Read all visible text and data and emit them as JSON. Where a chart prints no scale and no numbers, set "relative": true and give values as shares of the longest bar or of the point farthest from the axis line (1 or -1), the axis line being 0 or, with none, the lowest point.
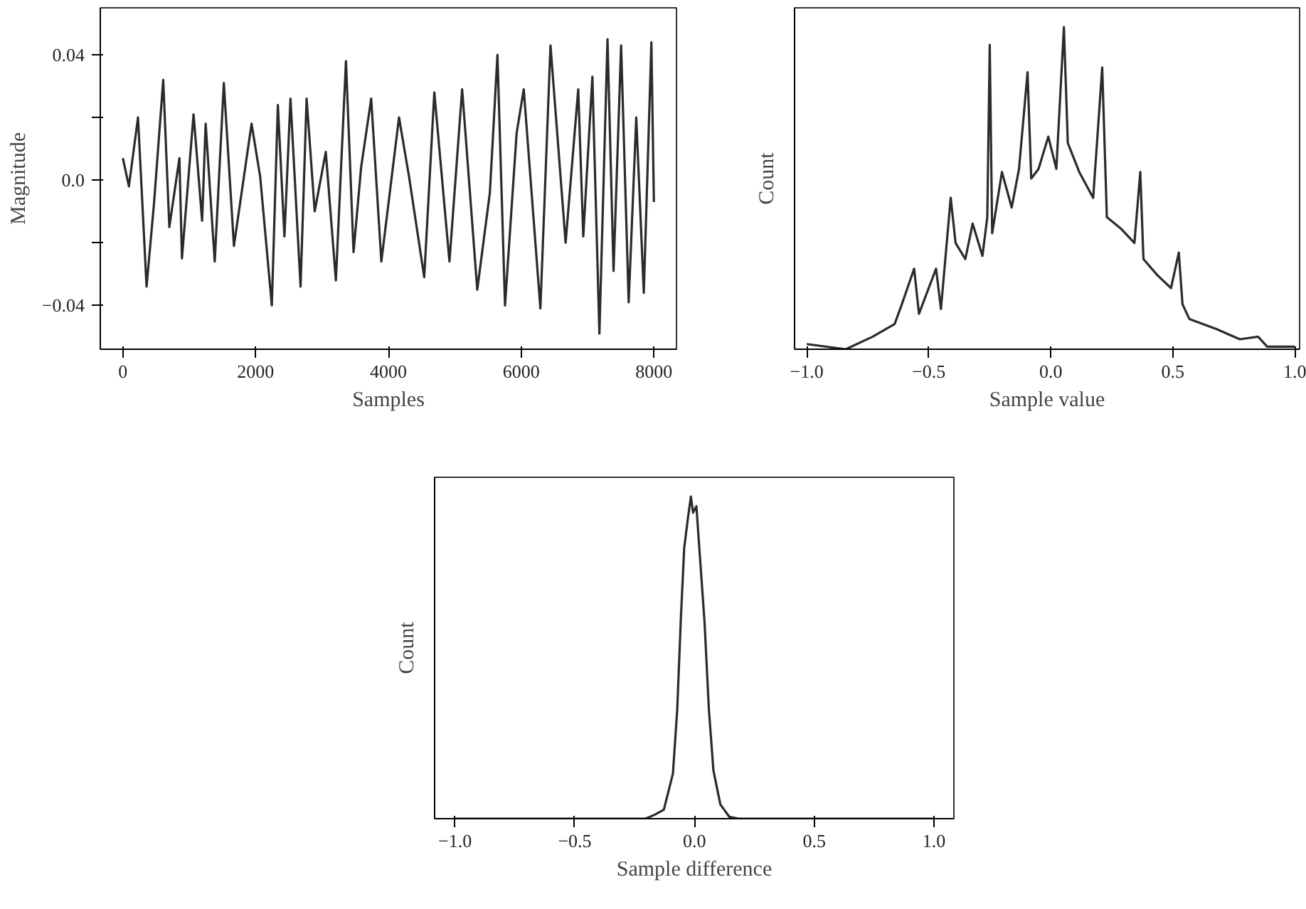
{
  "chart_data": [
    {
      "type": "line",
      "xlabel": "Samples",
      "ylabel": "Magnitude",
      "color": "#2b2b2b",
      "line_style": "solid",
      "marker": "none",
      "xlim": [
        -340,
        8340
      ],
      "ylim": [
        -0.054,
        0.055
      ],
      "xticks": [
        0,
        2000,
        4000,
        6000,
        8000
      ],
      "yticks": [
        {
          "value": -0.04,
          "label": "−0.04"
        },
        {
          "value": -0.02,
          "label": null
        },
        {
          "value": 0,
          "label": "0.0"
        },
        {
          "value": 0.02,
          "label": null
        },
        0.04
      ],
      "x": [
        0,
        91,
        228,
        357,
        471,
        608,
        700,
        852,
        890,
        1065,
        1194,
        1247,
        1384,
        1521,
        1673,
        1939,
        2069,
        2244,
        2335,
        2434,
        2525,
        2677,
        2768,
        2890,
        3057,
        3209,
        3361,
        3475,
        3589,
        3741,
        3894,
        4160,
        4312,
        4540,
        4692,
        4920,
        5111,
        5339,
        5529,
        5643,
        5757,
        5932,
        6039,
        6290,
        6442,
        6670,
        6860,
        6936,
        7073,
        7179,
        7301,
        7392,
        7506,
        7620,
        7734,
        7848,
        7962,
        8000
      ],
      "values": [
        0.007,
        -0.002,
        0.02,
        -0.034,
        -0.007,
        0.032,
        -0.015,
        0.007,
        -0.025,
        0.021,
        -0.013,
        0.018,
        -0.026,
        0.031,
        -0.021,
        0.018,
        0.001,
        -0.04,
        0.024,
        -0.018,
        0.026,
        -0.034,
        0.026,
        -0.01,
        0.009,
        -0.032,
        0.038,
        -0.023,
        0.004,
        0.026,
        -0.026,
        0.02,
        0.001,
        -0.031,
        0.028,
        -0.026,
        0.029,
        -0.035,
        -0.004,
        0.04,
        -0.04,
        0.015,
        0.029,
        -0.041,
        0.043,
        -0.02,
        0.029,
        -0.018,
        0.033,
        -0.049,
        0.045,
        -0.029,
        0.043,
        -0.039,
        0.02,
        -0.036,
        0.044,
        -0.007
      ]
    },
    {
      "type": "line",
      "relative": true,
      "xlabel": "Sample value",
      "ylabel": "Count",
      "color": "#2b2b2b",
      "tick_labels": "x",
      "xlim": [
        -1.05,
        1.02
      ],
      "xticks": [
        {
          "value": -1,
          "label": "−1.0"
        },
        {
          "value": -0.5,
          "label": "−0.5"
        },
        {
          "value": 0,
          "label": "0.0"
        },
        0.5,
        {
          "value": 1,
          "label": "1.0"
        }
      ],
      "x": [
        -1.0,
        -0.84,
        -0.73,
        -0.64,
        -0.61,
        -0.56,
        -0.54,
        -0.47,
        -0.45,
        -0.41,
        -0.39,
        -0.35,
        -0.32,
        -0.28,
        -0.26,
        -0.25,
        -0.24,
        -0.2,
        -0.16,
        -0.13,
        -0.095,
        -0.08,
        -0.05,
        -0.01,
        0.023,
        0.054,
        0.07,
        0.117,
        0.174,
        0.211,
        0.23,
        0.287,
        0.343,
        0.367,
        0.38,
        0.437,
        0.493,
        0.525,
        0.54,
        0.568,
        0.68,
        0.775,
        0.85,
        0.887,
        1.0
      ],
      "values": [
        0.016,
        0,
        0.039,
        0.078,
        0.14,
        0.25,
        0.11,
        0.25,
        0.125,
        0.47,
        0.33,
        0.28,
        0.39,
        0.29,
        0.41,
        0.945,
        0.36,
        0.55,
        0.44,
        0.56,
        0.86,
        0.53,
        0.56,
        0.66,
        0.56,
        1.0,
        0.64,
        0.55,
        0.47,
        0.875,
        0.41,
        0.375,
        0.33,
        0.55,
        0.28,
        0.23,
        0.19,
        0.3,
        0.14,
        0.094,
        0.0625,
        0.031,
        0.039,
        0.008,
        0.008
      ]
    },
    {
      "type": "line",
      "relative": true,
      "xlabel": "Sample difference",
      "ylabel": "Count",
      "color": "#2b2b2b",
      "tick_labels": "x",
      "xlim": [
        -1.085,
        1.083
      ],
      "xticks": [
        {
          "value": -1,
          "label": "−1.0"
        },
        {
          "value": -0.5,
          "label": "−0.5"
        },
        {
          "value": 0,
          "label": "0.0"
        },
        0.5,
        {
          "value": 1,
          "label": "1.0"
        }
      ],
      "x": [
        -1.0,
        -0.204,
        -0.166,
        -0.128,
        -0.09,
        -0.072,
        -0.057,
        -0.043,
        -0.028,
        -0.015,
        -0.006,
        0.008,
        0.023,
        0.042,
        0.06,
        0.079,
        0.108,
        0.145,
        0.183,
        1.0
      ],
      "values": [
        0,
        0,
        0.0125,
        0.028,
        0.14,
        0.34,
        0.62,
        0.84,
        0.93,
        1.0,
        0.95,
        0.97,
        0.81,
        0.61,
        0.34,
        0.15,
        0.044,
        0.006,
        0,
        0
      ]
    }
  ]
}
